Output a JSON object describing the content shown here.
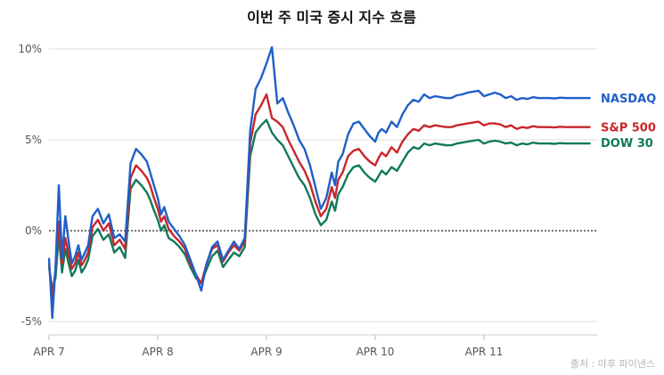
{
  "chart_data": {
    "type": "line",
    "title": "이번 주 미국 증시 지수 흐름",
    "source": "출처 : 야후 파이낸스",
    "xlabel": "",
    "ylabel": "",
    "ylim": [
      -6,
      10.5
    ],
    "y_ticks": [
      "10%",
      "5%",
      "0%",
      "-5%"
    ],
    "y_tick_values": [
      10,
      5,
      0,
      -5
    ],
    "x_ticks": [
      "APR 7",
      "APR 8",
      "APR 9",
      "APR 10",
      "APR 11"
    ],
    "x_tick_values": [
      0,
      1,
      2,
      3,
      4
    ],
    "xlim": [
      0,
      5
    ],
    "baseline": 0,
    "grid": true,
    "colors": {
      "NASDAQ": "#1f5fc8",
      "S&P 500": "#c8262c",
      "DOW 30": "#0f7a5a"
    },
    "series": [
      {
        "name": "NASDAQ",
        "x": [
          0.0,
          0.03,
          0.06,
          0.09,
          0.12,
          0.15,
          0.18,
          0.21,
          0.24,
          0.27,
          0.3,
          0.33,
          0.36,
          0.4,
          0.45,
          0.5,
          0.55,
          0.6,
          0.65,
          0.7,
          0.75,
          0.8,
          0.85,
          0.9,
          0.93,
          0.96,
          1.0,
          1.03,
          1.06,
          1.1,
          1.15,
          1.2,
          1.25,
          1.3,
          1.35,
          1.4,
          1.45,
          1.5,
          1.55,
          1.6,
          1.65,
          1.7,
          1.75,
          1.8,
          1.85,
          1.9,
          1.95,
          2.0,
          2.05,
          2.1,
          2.15,
          2.2,
          2.25,
          2.3,
          2.35,
          2.4,
          2.45,
          2.5,
          2.55,
          2.6,
          2.63,
          2.66,
          2.7,
          2.75,
          2.8,
          2.85,
          2.9,
          2.95,
          3.0,
          3.03,
          3.06,
          3.1,
          3.15,
          3.2,
          3.25,
          3.3,
          3.35,
          3.4,
          3.45,
          3.5,
          3.55,
          3.6,
          3.65,
          3.7,
          3.75,
          3.8,
          3.85,
          3.9,
          3.95,
          4.0,
          4.05,
          4.1,
          4.15,
          4.2,
          4.25,
          4.3,
          4.35,
          4.4,
          4.45,
          4.5,
          4.55,
          4.6,
          4.65,
          4.7,
          4.75,
          4.8,
          4.85,
          4.9,
          4.95,
          4.98
        ],
        "values": [
          -1.5,
          -4.8,
          -2.0,
          2.5,
          -1.5,
          0.8,
          -0.6,
          -1.8,
          -1.4,
          -0.8,
          -1.6,
          -1.2,
          -0.8,
          0.8,
          1.2,
          0.4,
          0.9,
          -0.4,
          -0.2,
          -0.6,
          3.7,
          4.5,
          4.2,
          3.8,
          3.2,
          2.6,
          1.8,
          0.9,
          1.3,
          0.5,
          0.1,
          -0.3,
          -0.8,
          -1.6,
          -2.4,
          -3.3,
          -1.8,
          -0.9,
          -0.6,
          -1.6,
          -1.1,
          -0.6,
          -1.0,
          -0.4,
          5.5,
          7.8,
          8.4,
          9.2,
          10.1,
          7.0,
          7.3,
          6.5,
          5.8,
          5.0,
          4.5,
          3.6,
          2.4,
          1.2,
          1.8,
          3.2,
          2.5,
          3.8,
          4.2,
          5.3,
          5.9,
          6.0,
          5.6,
          5.2,
          4.9,
          5.4,
          5.6,
          5.4,
          6.0,
          5.7,
          6.4,
          6.9,
          7.2,
          7.1,
          7.5,
          7.3,
          7.4,
          7.35,
          7.3,
          7.3,
          7.45,
          7.5,
          7.6,
          7.65,
          7.7,
          7.4,
          7.5,
          7.6,
          7.5,
          7.3,
          7.4,
          7.2,
          7.3,
          7.25,
          7.35,
          7.3,
          7.3,
          7.3,
          7.28,
          7.32,
          7.3,
          7.3,
          7.3,
          7.3,
          7.3,
          7.3
        ]
      },
      {
        "name": "S&P 500",
        "x": [
          0.0,
          0.03,
          0.06,
          0.09,
          0.12,
          0.15,
          0.18,
          0.21,
          0.24,
          0.27,
          0.3,
          0.33,
          0.36,
          0.4,
          0.45,
          0.5,
          0.55,
          0.6,
          0.65,
          0.7,
          0.75,
          0.8,
          0.85,
          0.9,
          0.93,
          0.96,
          1.0,
          1.03,
          1.06,
          1.1,
          1.15,
          1.2,
          1.25,
          1.3,
          1.35,
          1.4,
          1.45,
          1.5,
          1.55,
          1.6,
          1.65,
          1.7,
          1.75,
          1.8,
          1.85,
          1.9,
          1.95,
          2.0,
          2.05,
          2.1,
          2.15,
          2.2,
          2.25,
          2.3,
          2.35,
          2.4,
          2.45,
          2.5,
          2.55,
          2.6,
          2.63,
          2.66,
          2.7,
          2.75,
          2.8,
          2.85,
          2.9,
          2.95,
          3.0,
          3.03,
          3.06,
          3.1,
          3.15,
          3.2,
          3.25,
          3.3,
          3.35,
          3.4,
          3.45,
          3.5,
          3.55,
          3.6,
          3.65,
          3.7,
          3.75,
          3.8,
          3.85,
          3.9,
          3.95,
          4.0,
          4.05,
          4.1,
          4.15,
          4.2,
          4.25,
          4.3,
          4.35,
          4.4,
          4.45,
          4.5,
          4.55,
          4.6,
          4.65,
          4.7,
          4.75,
          4.8,
          4.85,
          4.9,
          4.95,
          4.98
        ],
        "values": [
          -1.8,
          -3.8,
          -2.1,
          0.5,
          -1.8,
          -0.4,
          -1.3,
          -2.1,
          -1.8,
          -1.2,
          -1.9,
          -1.6,
          -1.2,
          0.2,
          0.6,
          0.0,
          0.4,
          -0.8,
          -0.5,
          -1.0,
          2.9,
          3.6,
          3.3,
          2.9,
          2.5,
          1.9,
          1.2,
          0.5,
          0.8,
          0.1,
          -0.3,
          -0.6,
          -1.0,
          -1.8,
          -2.4,
          -2.9,
          -1.8,
          -1.0,
          -0.8,
          -1.7,
          -1.2,
          -0.8,
          -1.1,
          -0.6,
          4.8,
          6.4,
          6.9,
          7.5,
          6.2,
          6.0,
          5.7,
          5.0,
          4.4,
          3.8,
          3.3,
          2.6,
          1.6,
          0.8,
          1.2,
          2.4,
          1.8,
          2.8,
          3.2,
          4.1,
          4.4,
          4.5,
          4.1,
          3.8,
          3.6,
          4.0,
          4.3,
          4.1,
          4.6,
          4.3,
          4.9,
          5.3,
          5.6,
          5.5,
          5.8,
          5.7,
          5.8,
          5.75,
          5.7,
          5.7,
          5.8,
          5.85,
          5.9,
          5.95,
          6.0,
          5.8,
          5.9,
          5.9,
          5.85,
          5.7,
          5.8,
          5.6,
          5.7,
          5.65,
          5.75,
          5.7,
          5.7,
          5.7,
          5.68,
          5.72,
          5.7,
          5.7,
          5.7,
          5.7,
          5.7,
          5.7
        ]
      },
      {
        "name": "DOW 30",
        "x": [
          0.0,
          0.03,
          0.06,
          0.09,
          0.12,
          0.15,
          0.18,
          0.21,
          0.24,
          0.27,
          0.3,
          0.33,
          0.36,
          0.4,
          0.45,
          0.5,
          0.55,
          0.6,
          0.65,
          0.7,
          0.75,
          0.8,
          0.85,
          0.9,
          0.93,
          0.96,
          1.0,
          1.03,
          1.06,
          1.1,
          1.15,
          1.2,
          1.25,
          1.3,
          1.35,
          1.4,
          1.45,
          1.5,
          1.55,
          1.6,
          1.65,
          1.7,
          1.75,
          1.8,
          1.85,
          1.9,
          1.95,
          2.0,
          2.05,
          2.1,
          2.15,
          2.2,
          2.25,
          2.3,
          2.35,
          2.4,
          2.45,
          2.5,
          2.55,
          2.6,
          2.63,
          2.66,
          2.7,
          2.75,
          2.8,
          2.85,
          2.9,
          2.95,
          3.0,
          3.03,
          3.06,
          3.1,
          3.15,
          3.2,
          3.25,
          3.3,
          3.35,
          3.4,
          3.45,
          3.5,
          3.55,
          3.6,
          3.65,
          3.7,
          3.75,
          3.8,
          3.85,
          3.9,
          3.95,
          4.0,
          4.05,
          4.1,
          4.15,
          4.2,
          4.25,
          4.3,
          4.35,
          4.4,
          4.45,
          4.5,
          4.55,
          4.6,
          4.65,
          4.7,
          4.75,
          4.8,
          4.85,
          4.9,
          4.95,
          4.98
        ],
        "values": [
          -2.0,
          -3.2,
          -2.6,
          -0.2,
          -2.3,
          -1.0,
          -1.8,
          -2.5,
          -2.2,
          -1.6,
          -2.3,
          -2.0,
          -1.6,
          -0.3,
          0.1,
          -0.5,
          -0.2,
          -1.2,
          -0.9,
          -1.5,
          2.3,
          2.8,
          2.5,
          2.1,
          1.7,
          1.2,
          0.6,
          0.0,
          0.3,
          -0.4,
          -0.6,
          -0.9,
          -1.3,
          -2.0,
          -2.6,
          -2.9,
          -2.1,
          -1.4,
          -1.1,
          -2.0,
          -1.6,
          -1.2,
          -1.4,
          -0.9,
          4.1,
          5.4,
          5.8,
          6.1,
          5.4,
          5.0,
          4.7,
          4.1,
          3.5,
          2.9,
          2.5,
          1.8,
          0.9,
          0.3,
          0.6,
          1.6,
          1.1,
          2.0,
          2.4,
          3.1,
          3.5,
          3.6,
          3.2,
          2.9,
          2.7,
          3.0,
          3.3,
          3.1,
          3.5,
          3.3,
          3.8,
          4.3,
          4.6,
          4.5,
          4.8,
          4.7,
          4.8,
          4.75,
          4.7,
          4.7,
          4.8,
          4.85,
          4.9,
          4.95,
          5.0,
          4.8,
          4.9,
          4.95,
          4.9,
          4.8,
          4.85,
          4.7,
          4.8,
          4.75,
          4.85,
          4.8,
          4.8,
          4.8,
          4.78,
          4.82,
          4.8,
          4.8,
          4.8,
          4.8,
          4.8,
          4.8
        ]
      }
    ]
  }
}
